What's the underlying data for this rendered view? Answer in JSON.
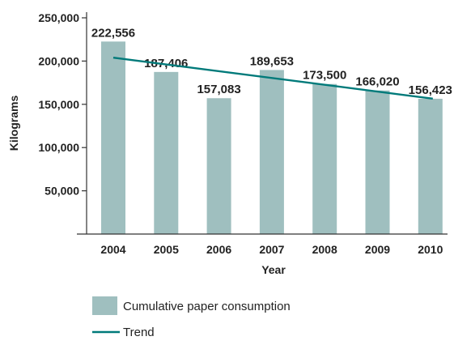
{
  "chart_data": {
    "type": "bar",
    "title": "",
    "xlabel": "Year",
    "ylabel": "Kilograms",
    "categories": [
      "2004",
      "2005",
      "2006",
      "2007",
      "2008",
      "2009",
      "2010"
    ],
    "series": [
      {
        "name": "Cumulative paper consumption",
        "values": [
          222556,
          187406,
          157083,
          189653,
          173500,
          166020,
          156423
        ],
        "labels": [
          "222,556",
          "187,406",
          "157,083",
          "189,653",
          "173,500",
          "166,020",
          "156,423"
        ],
        "color": "#9fbfbf"
      }
    ],
    "trend": {
      "name": "Trend",
      "start": 204000,
      "end": 156500,
      "color": "#007a7a"
    },
    "ylim": [
      0,
      250000
    ],
    "yticks": [
      50000,
      100000,
      150000,
      200000,
      250000
    ],
    "ytick_labels": [
      "50,000",
      "100,000",
      "150,000",
      "200,000",
      "250,000"
    ],
    "grid": false,
    "legend": "bottom-left"
  }
}
